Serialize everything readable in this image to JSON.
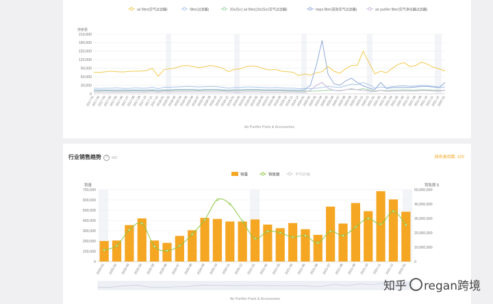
{
  "chart_data": [
    {
      "type": "line",
      "title": "",
      "ylabel": "搜索量",
      "xlabel": "Air Purifier Parts & Accessories",
      "ylim": [
        0,
        210000
      ],
      "yticks": [
        "0",
        "30,000",
        "60,000",
        "90,000",
        "120,000",
        "150,000",
        "180,000",
        "210,000"
      ],
      "x": [
        "2017-01",
        "2017-02",
        "2017-03",
        "2017-04",
        "2017-05",
        "2017-06",
        "2017-07",
        "2017-08",
        "2017-09",
        "2017-10",
        "2017-11",
        "2017-12",
        "2018-01",
        "2018-02",
        "2018-03",
        "2018-04",
        "2018-05",
        "2018-06",
        "2018-07",
        "2018-08",
        "2018-09",
        "2018-10",
        "2018-11",
        "2018-12",
        "2019-01",
        "2019-02",
        "2019-03",
        "2019-04",
        "2019-05",
        "2019-06",
        "2019-07",
        "2019-08",
        "2019-09",
        "2019-10",
        "2019-11",
        "2019-12",
        "2020-01",
        "2020-02",
        "2020-03",
        "2020-04",
        "2020-05",
        "2020-06",
        "2020-07",
        "2020-08",
        "2020-09",
        "2020-10",
        "2020-11",
        "2020-12",
        "2021-01",
        "2021-02",
        "2021-03",
        "2021-04",
        "2021-05",
        "2021-06",
        "2021-07",
        "2021-08",
        "2021-09",
        "2021-10",
        "2021-11",
        "2021-12",
        "2022-01"
      ],
      "legend_position": "top",
      "series": [
        {
          "name": "air filter(空气过滤器)",
          "color": "#f2c94c",
          "values": [
            76000,
            75000,
            78000,
            80000,
            78000,
            77000,
            79000,
            80000,
            80000,
            82000,
            90000,
            62000,
            85000,
            88000,
            92000,
            98000,
            100000,
            96000,
            92000,
            96000,
            100000,
            96000,
            90000,
            78000,
            86000,
            88000,
            96000,
            98000,
            96000,
            88000,
            84000,
            86000,
            80000,
            78000,
            76000,
            64000,
            70000,
            66000,
            74000,
            78000,
            96000,
            80000,
            72000,
            88000,
            100000,
            100000,
            150000,
            110000,
            70000,
            80000,
            74000,
            90000,
            104000,
            110000,
            96000,
            100000,
            112000,
            104000,
            94000,
            88000,
            80000
          ]
        },
        {
          "name": "filter(过滤器)",
          "color": "#a8c4e8",
          "values": [
            20000,
            19000,
            20000,
            20000,
            21000,
            19000,
            19000,
            21000,
            20000,
            20000,
            23000,
            18000,
            23000,
            23000,
            24000,
            25000,
            26000,
            25000,
            24000,
            25000,
            26000,
            25000,
            23000,
            20000,
            22000,
            22000,
            24000,
            24000,
            23000,
            22000,
            21000,
            22000,
            21000,
            20000,
            20000,
            18000,
            19000,
            18000,
            20000,
            22000,
            26000,
            24000,
            22000,
            28000,
            34000,
            32000,
            40000,
            32000,
            20000,
            24000,
            22000,
            25000,
            27000,
            28000,
            26000,
            27000,
            30000,
            28000,
            26000,
            24000,
            22000
          ]
        },
        {
          "name": "20x25x1 air filter(20x25x1空气过滤器)",
          "color": "#9ed2a0",
          "values": [
            10000,
            10000,
            11000,
            10000,
            10000,
            10000,
            10000,
            11000,
            10000,
            10000,
            11000,
            9000,
            11000,
            11000,
            12000,
            12000,
            12000,
            12000,
            11000,
            12000,
            12000,
            12000,
            11000,
            10000,
            11000,
            11000,
            12000,
            12000,
            12000,
            11000,
            11000,
            11000,
            11000,
            10000,
            10000,
            9000,
            10000,
            9000,
            10000,
            11000,
            13000,
            12000,
            11000,
            14000,
            16000,
            14000,
            18000,
            14000,
            10000,
            12000,
            11000,
            12000,
            13000,
            14000,
            13000,
            13000,
            15000,
            14000,
            13000,
            12000,
            11000
          ]
        },
        {
          "name": "hepa filter(高效空气过滤器)",
          "color": "#8fa8d8",
          "values": [
            14000,
            13000,
            13000,
            13000,
            13000,
            13000,
            13000,
            13000,
            13000,
            13000,
            14000,
            12000,
            14000,
            14000,
            15000,
            15000,
            15000,
            15000,
            14000,
            15000,
            15000,
            15000,
            14000,
            13000,
            14000,
            14000,
            15000,
            15000,
            15000,
            14000,
            14000,
            14000,
            14000,
            13000,
            13000,
            12000,
            14000,
            30000,
            100000,
            188000,
            70000,
            36000,
            30000,
            45000,
            55000,
            40000,
            28000,
            20000,
            15000,
            40000,
            18000,
            22000,
            22000,
            22000,
            22000,
            24000,
            26000,
            26000,
            24000,
            22000,
            40000
          ]
        },
        {
          "name": "air purifier filter(空气净化器过滤器)",
          "color": "#c6b3d8",
          "values": [
            6000,
            6000,
            6000,
            6000,
            6000,
            6000,
            6000,
            6000,
            6000,
            6000,
            7000,
            5000,
            7000,
            7000,
            7000,
            7000,
            7000,
            7000,
            7000,
            7000,
            7000,
            7000,
            7000,
            6000,
            6000,
            6000,
            7000,
            7000,
            7000,
            6000,
            6000,
            6000,
            6000,
            6000,
            6000,
            5000,
            6000,
            12000,
            30000,
            40000,
            20000,
            12000,
            10000,
            14000,
            18000,
            14000,
            12000,
            10000,
            8000,
            12000,
            9000,
            10000,
            10000,
            10000,
            10000,
            10000,
            11000,
            11000,
            10000,
            10000,
            12000
          ]
        }
      ]
    },
    {
      "type": "bar",
      "title": "行业销售趋势",
      "title_tag": "SKI",
      "right_link": "排名类目数: 100",
      "xlabel": "Air Purifier Parts & Accessories",
      "ylabel_left": "销量",
      "ylabel_right": "销售额 $",
      "ylim_left": [
        0,
        700000
      ],
      "ylim_right": [
        0,
        50000000
      ],
      "yticks_left": [
        "0",
        "100,000",
        "200,000",
        "300,000",
        "400,000",
        "500,000",
        "600,000",
        "700,000"
      ],
      "yticks_right": [
        "0",
        "10,000,000",
        "20,000,000",
        "30,000,000",
        "40,000,000",
        "50,000,000"
      ],
      "legend": [
        "销量",
        "销售额",
        "平均价格"
      ],
      "categories": [
        "2020-01",
        "2020-02",
        "2020-03",
        "2020-04",
        "2020-05",
        "2020-06",
        "2020-07",
        "2020-08",
        "2020-09",
        "2020-10",
        "2020-11",
        "2020-12",
        "2021-01",
        "2021-02",
        "2021-03",
        "2021-04",
        "2021-05",
        "2021-06",
        "2021-07",
        "2021-08",
        "2021-09",
        "2021-10",
        "2021-11",
        "2021-12",
        "2022-01"
      ],
      "series": [
        {
          "name": "销量",
          "color": "#f5a623",
          "values": [
            200000,
            205000,
            355000,
            420000,
            205000,
            182000,
            250000,
            305000,
            425000,
            415000,
            390000,
            390000,
            410000,
            360000,
            325000,
            375000,
            315000,
            260000,
            535000,
            370000,
            570000,
            490000,
            685000,
            605000,
            485000
          ]
        },
        {
          "name": "销售额",
          "color": "#8cc63f",
          "values": [
            8000000,
            11000000,
            22000000,
            26500000,
            10500000,
            7500000,
            11000000,
            19000000,
            29000000,
            43000000,
            40000000,
            28000000,
            16000000,
            21000000,
            20000000,
            17000000,
            18000000,
            13000000,
            21000000,
            18000000,
            24000000,
            30000000,
            26000000,
            35000000,
            25500000
          ]
        }
      ]
    }
  ],
  "page": {
    "card2_title": "行业销售趋势",
    "card2_tag": "SKI",
    "card2_right_link": "排名类目数: 100"
  },
  "watermark": {
    "text_left": "知乎",
    "text_right": "regan跨境"
  }
}
